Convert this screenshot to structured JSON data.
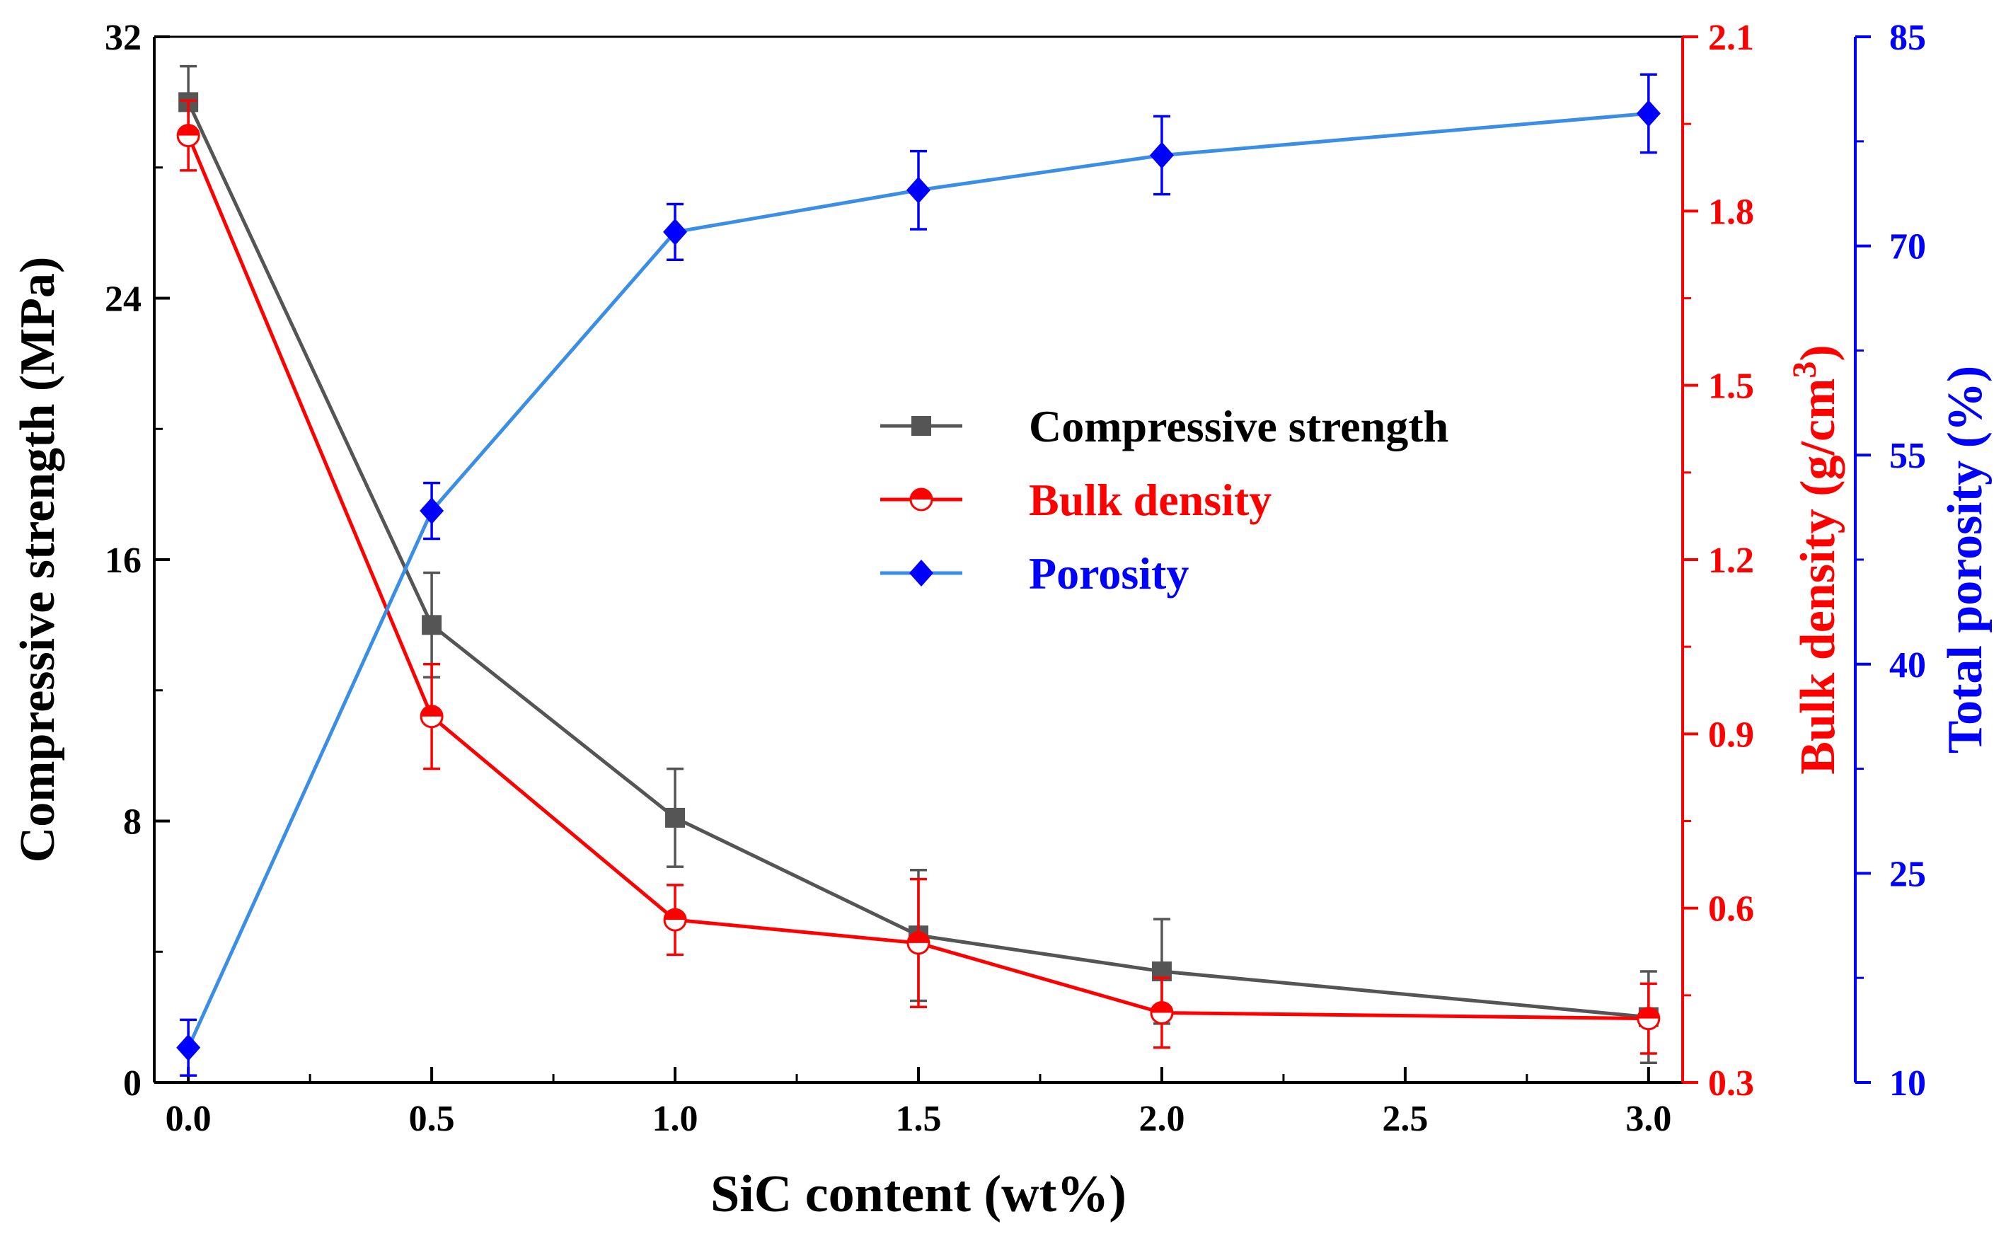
{
  "chart_data": {
    "type": "line",
    "xlabel": "SiC content (wt%)",
    "x_ticks": [
      "0.0",
      "0.5",
      "1.0",
      "1.5",
      "2.0",
      "2.5",
      "3.0"
    ],
    "xlim": [
      -0.07,
      3.07
    ],
    "axes": {
      "left": {
        "label": "Compressive strength (MPa)",
        "ylim": [
          0,
          32
        ],
        "ticks": [
          "0",
          "8",
          "16",
          "24",
          "32"
        ],
        "color": "#000000"
      },
      "right": {
        "label_main": "Bulk density (g/cm",
        "label_sup": "3",
        "label_end": ")",
        "ylim": [
          0.3,
          2.1
        ],
        "ticks": [
          "0.3",
          "0.6",
          "0.9",
          "1.2",
          "1.5",
          "1.8",
          "2.1"
        ],
        "color": "#ff0000"
      },
      "far_right": {
        "label": "Total porosity (%)",
        "ylim": [
          10,
          85
        ],
        "ticks": [
          "10",
          "25",
          "40",
          "55",
          "70",
          "85"
        ],
        "color": "#0000ff"
      }
    },
    "series": [
      {
        "name": "Compressive strength",
        "axis": "left",
        "marker": "square",
        "line_color": "#555555",
        "marker_color": "#555555",
        "label_color": "#000000",
        "x": [
          0.0,
          0.5,
          1.0,
          1.5,
          2.0,
          3.0
        ],
        "y": [
          30.0,
          14.0,
          8.1,
          4.5,
          3.4,
          2.0
        ],
        "err": [
          1.1,
          1.6,
          1.5,
          2.0,
          1.6,
          1.4
        ]
      },
      {
        "name": "Bulk density",
        "axis": "right",
        "marker": "half-circle",
        "line_color": "#ff0000",
        "marker_color": "#ff0000",
        "label_color": "#ff0000",
        "x": [
          0.0,
          0.5,
          1.0,
          1.5,
          2.0,
          3.0
        ],
        "y": [
          1.93,
          0.93,
          0.58,
          0.54,
          0.42,
          0.41
        ],
        "err": [
          0.06,
          0.09,
          0.06,
          0.11,
          0.06,
          0.06
        ]
      },
      {
        "name": "Porosity",
        "axis": "far_right",
        "marker": "diamond",
        "line_color": "#3a8ee6",
        "marker_color": "#0000ff",
        "label_color": "#0000ff",
        "x": [
          0.0,
          0.5,
          1.0,
          1.5,
          2.0,
          3.0
        ],
        "y": [
          12.5,
          51.0,
          71.0,
          74.0,
          76.5,
          79.5
        ],
        "err": [
          2.0,
          2.0,
          2.0,
          2.8,
          2.8,
          2.8
        ]
      }
    ],
    "legend_position": "center"
  }
}
